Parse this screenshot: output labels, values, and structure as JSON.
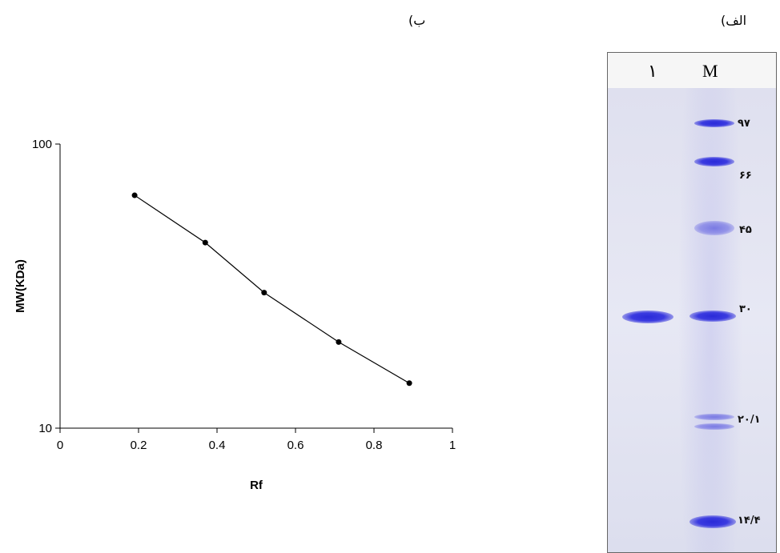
{
  "panel_labels": {
    "b": "ب)",
    "a": "الف)"
  },
  "chart_data": {
    "type": "line",
    "xlabel": "Rf",
    "ylabel": "MW(KDa)",
    "xlim": [
      0,
      1
    ],
    "ylim": [
      10,
      100
    ],
    "y_scale": "log",
    "grid": false,
    "x_ticks": [
      "0",
      "0.2",
      "0.4",
      "0.6",
      "0.8",
      "1"
    ],
    "y_ticks": [
      "10",
      "100"
    ],
    "series": [
      {
        "x": [
          0.19,
          0.37,
          0.52,
          0.71,
          0.89
        ],
        "y": [
          66,
          45,
          30,
          20.1,
          14.4
        ]
      }
    ]
  },
  "gel": {
    "lane_labels": [
      "۱",
      "M"
    ],
    "marker_labels": [
      "۹۷",
      "۶۶",
      "۴۵",
      "۳۰",
      "۲۰/۱",
      "۱۴/۴"
    ],
    "colors": {
      "band": "#2a2ad8",
      "background": "#e5e7f2"
    }
  }
}
